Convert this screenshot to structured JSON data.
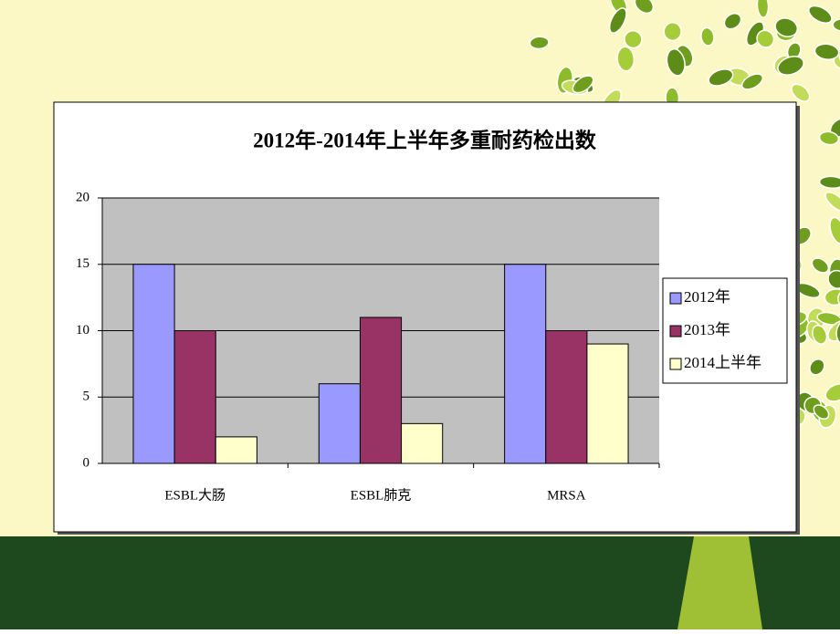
{
  "chart_data": {
    "type": "bar",
    "title": "2012年-2014年上半年多重耐药检出数",
    "categories": [
      "ESBL大肠",
      "ESBL肺克",
      "MRSA"
    ],
    "series": [
      {
        "name": "2012年",
        "color": "#9999ff",
        "values": [
          15,
          6,
          15
        ]
      },
      {
        "name": "2013年",
        "color": "#993366",
        "values": [
          10,
          11,
          10
        ]
      },
      {
        "name": "2014上半年",
        "color": "#ffffcc",
        "values": [
          2,
          3,
          9
        ]
      }
    ],
    "ylim": [
      0,
      20
    ],
    "yticks": [
      0,
      5,
      10,
      15,
      20
    ],
    "grid": true,
    "legend": "right"
  }
}
